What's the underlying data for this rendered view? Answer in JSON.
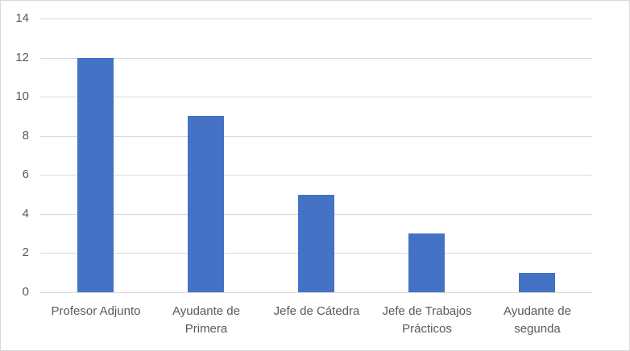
{
  "chart_data": {
    "type": "bar",
    "title": "",
    "xlabel": "",
    "ylabel": "",
    "ylim": [
      0,
      14
    ],
    "yticks": [
      0,
      2,
      4,
      6,
      8,
      10,
      12,
      14
    ],
    "grid": true,
    "legend": null,
    "categories": [
      "Profesor Adjunto",
      "Ayudante de Primera",
      "Jefe de Cátedra",
      "Jefe de Trabajos Prácticos",
      "Ayudante de segunda"
    ],
    "category_lines": [
      [
        "Profesor Adjunto"
      ],
      [
        "Ayudante de",
        "Primera"
      ],
      [
        "Jefe de Cátedra"
      ],
      [
        "Jefe de Trabajos",
        "Prácticos"
      ],
      [
        "Ayudante de",
        "segunda"
      ]
    ],
    "values": [
      12,
      9,
      5,
      3,
      1
    ],
    "bar_color": "#4472c4"
  }
}
